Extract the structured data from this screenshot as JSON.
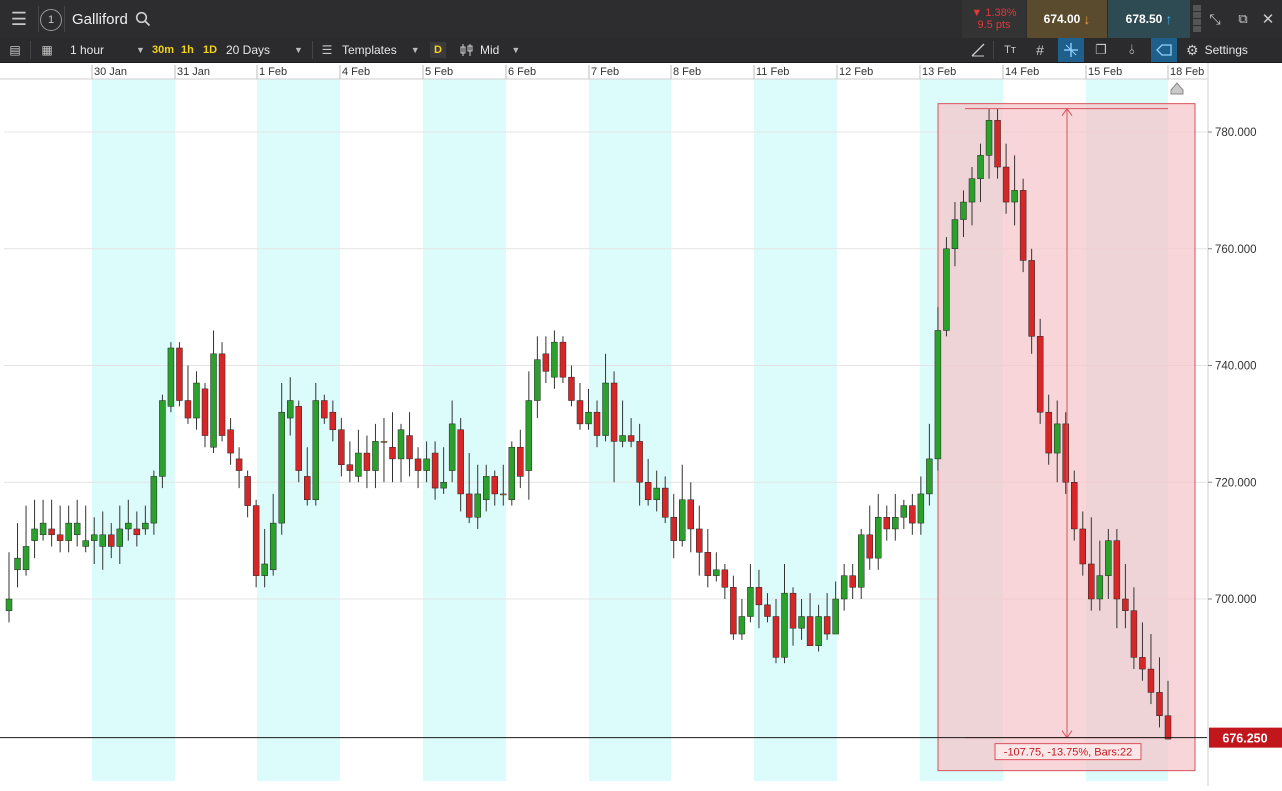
{
  "header": {
    "menu_icon": "hamburger-menu-icon",
    "info_icon": "info-circle-icon",
    "instrument": "Galliford",
    "search_icon": "magnifier-search-icon",
    "change_pct": "▼ 1.38%",
    "change_pts": "9.5 pts",
    "sell_price": "674.00",
    "buy_price": "678.50",
    "colors": {
      "sell_bg": "#5a4a2e",
      "buy_bg": "#2e4a52",
      "change": "#e0383e"
    }
  },
  "toolbar": {
    "interval": "1 hour",
    "quick_intervals": [
      "30m",
      "1h",
      "1D"
    ],
    "range": "20 Days",
    "templates": "Templates",
    "d_badge": "D",
    "price_type": "Mid",
    "settings": "Settings"
  },
  "chart_data": {
    "type": "candlestick",
    "title": "",
    "x_tick_labels": [
      "30 Jan",
      "31 Jan",
      "1 Feb",
      "4 Feb",
      "5 Feb",
      "6 Feb",
      "7 Feb",
      "8 Feb",
      "11 Feb",
      "12 Feb",
      "13 Feb",
      "14 Feb",
      "15 Feb",
      "18 Feb"
    ],
    "y_tick_labels": [
      "780.000",
      "760.000",
      "740.000",
      "720.000",
      "700.000"
    ],
    "y_ticks": [
      780,
      760,
      740,
      720,
      700
    ],
    "ylim": [
      664.4,
      791.5
    ],
    "current_price_label": "676.250",
    "current_price": 676.25,
    "measure_label": "-107.75, -13.75%, Bars:22",
    "measure": {
      "from": 784.0,
      "to": 676.25,
      "change": -107.75,
      "change_pct": -13.75,
      "bars": 22
    },
    "colors": {
      "up": "#2ca02c",
      "down": "#d62728",
      "doji": "#e0a020",
      "shade": "#dcfbfb",
      "measure_fill": "#f6c7cb",
      "measure_line": "#d9535b",
      "price_tag": "#c0161c"
    },
    "candles": [
      [
        698,
        700,
        708,
        696
      ],
      [
        705,
        707,
        713,
        702
      ],
      [
        705,
        709,
        716,
        704
      ],
      [
        710,
        712,
        717,
        707
      ],
      [
        711,
        713,
        717,
        710
      ],
      [
        712,
        711,
        717,
        709
      ],
      [
        711,
        710,
        716,
        708
      ],
      [
        710,
        713,
        716,
        708
      ],
      [
        711,
        713,
        717,
        709
      ],
      [
        709,
        710,
        716,
        708
      ],
      [
        710,
        711,
        714,
        706
      ],
      [
        709,
        711,
        715,
        705
      ],
      [
        711,
        709,
        713,
        707
      ],
      [
        709,
        712,
        716,
        706
      ],
      [
        712,
        713,
        717,
        710
      ],
      [
        712,
        711,
        715,
        709
      ],
      [
        712,
        713,
        716,
        711
      ],
      [
        713,
        721,
        722,
        711
      ],
      [
        721,
        734,
        735,
        719
      ],
      [
        733,
        743,
        744,
        732
      ],
      [
        743,
        734,
        744,
        733
      ],
      [
        734,
        731,
        740,
        730
      ],
      [
        731,
        737,
        739,
        729
      ],
      [
        736,
        728,
        737,
        726
      ],
      [
        726,
        742,
        746,
        725
      ],
      [
        742,
        728,
        744,
        727
      ],
      [
        729,
        725,
        731,
        723
      ],
      [
        724,
        722,
        726,
        719
      ],
      [
        721,
        716,
        722,
        714
      ],
      [
        716,
        704,
        717,
        702
      ],
      [
        704,
        706,
        712,
        702
      ],
      [
        705,
        713,
        718,
        704
      ],
      [
        713,
        732,
        737,
        711
      ],
      [
        731,
        734,
        738,
        728
      ],
      [
        733,
        722,
        734,
        720
      ],
      [
        721,
        717,
        726,
        716
      ],
      [
        717,
        734,
        737,
        716
      ],
      [
        734,
        731,
        735,
        730
      ],
      [
        732,
        729,
        734,
        727
      ],
      [
        729,
        723,
        731,
        721
      ],
      [
        723,
        722,
        727,
        720
      ],
      [
        721,
        725,
        729,
        720
      ],
      [
        725,
        722,
        728,
        719
      ],
      [
        722,
        727,
        730,
        719
      ],
      [
        727,
        727,
        731,
        720
      ],
      [
        726,
        724,
        732,
        720
      ],
      [
        724,
        729,
        730,
        720
      ],
      [
        728,
        724,
        732,
        721
      ],
      [
        724,
        722,
        726,
        719
      ],
      [
        722,
        724,
        727,
        720
      ],
      [
        725,
        719,
        727,
        717
      ],
      [
        719,
        720,
        726,
        718
      ],
      [
        722,
        730,
        734,
        720
      ],
      [
        729,
        718,
        731,
        715
      ],
      [
        718,
        714,
        725,
        713
      ],
      [
        714,
        718,
        723,
        712
      ],
      [
        717,
        721,
        723,
        715
      ],
      [
        721,
        718,
        722,
        716
      ],
      [
        718,
        718,
        723,
        716
      ],
      [
        717,
        726,
        727,
        716
      ],
      [
        726,
        721,
        729,
        719
      ],
      [
        722,
        734,
        739,
        717
      ],
      [
        734,
        741,
        745,
        731
      ],
      [
        742,
        739,
        745,
        737
      ],
      [
        738,
        744,
        746,
        736
      ],
      [
        744,
        738,
        745,
        737
      ],
      [
        738,
        734,
        740,
        733
      ],
      [
        734,
        730,
        737,
        729
      ],
      [
        730,
        732,
        736,
        729
      ],
      [
        732,
        728,
        734,
        726
      ],
      [
        728,
        737,
        742,
        727
      ],
      [
        737,
        727,
        739,
        720
      ],
      [
        727,
        728,
        734,
        726
      ],
      [
        728,
        727,
        731,
        726
      ],
      [
        727,
        720,
        730,
        716
      ],
      [
        720,
        717,
        724,
        716
      ],
      [
        717,
        719,
        722,
        715
      ],
      [
        719,
        714,
        721,
        713
      ],
      [
        714,
        710,
        718,
        707
      ],
      [
        710,
        717,
        723,
        709
      ],
      [
        717,
        712,
        720,
        708
      ],
      [
        712,
        708,
        716,
        704
      ],
      [
        708,
        704,
        712,
        702
      ],
      [
        704,
        705,
        708,
        703
      ],
      [
        705,
        702,
        706,
        700
      ],
      [
        702,
        694,
        704,
        693
      ],
      [
        694,
        697,
        700,
        693
      ],
      [
        697,
        702,
        706,
        696
      ],
      [
        702,
        699,
        705,
        695
      ],
      [
        699,
        697,
        701,
        696
      ],
      [
        697,
        690,
        700,
        689
      ],
      [
        690,
        701,
        706,
        689
      ],
      [
        701,
        695,
        702,
        692
      ],
      [
        695,
        697,
        700,
        693
      ],
      [
        697,
        692,
        701,
        692
      ],
      [
        692,
        697,
        699,
        691
      ],
      [
        697,
        694,
        701,
        693
      ],
      [
        694,
        700,
        703,
        694
      ],
      [
        700,
        704,
        706,
        698
      ],
      [
        704,
        702,
        706,
        700
      ],
      [
        702,
        711,
        712,
        700
      ],
      [
        711,
        707,
        716,
        705
      ],
      [
        707,
        714,
        718,
        705
      ],
      [
        714,
        712,
        716,
        710
      ],
      [
        712,
        714,
        718,
        710
      ],
      [
        714,
        716,
        717,
        712
      ],
      [
        716,
        713,
        718,
        711
      ],
      [
        713,
        718,
        721,
        711
      ],
      [
        718,
        724,
        730,
        716
      ],
      [
        724,
        746,
        750,
        722
      ],
      [
        746,
        760,
        762,
        745
      ],
      [
        760,
        765,
        768,
        757
      ],
      [
        765,
        768,
        770,
        762
      ],
      [
        768,
        772,
        774,
        764
      ],
      [
        772,
        776,
        778,
        768
      ],
      [
        776,
        782,
        784,
        772
      ],
      [
        782,
        774,
        784,
        772
      ],
      [
        774,
        768,
        778,
        766
      ],
      [
        768,
        770,
        776,
        764
      ],
      [
        770,
        758,
        772,
        756
      ],
      [
        758,
        745,
        760,
        742
      ],
      [
        745,
        732,
        748,
        730
      ],
      [
        732,
        725,
        735,
        723
      ],
      [
        725,
        730,
        734,
        720
      ],
      [
        730,
        720,
        732,
        718
      ],
      [
        720,
        712,
        722,
        710
      ],
      [
        712,
        706,
        715,
        704
      ],
      [
        706,
        700,
        714,
        698
      ],
      [
        700,
        704,
        710,
        698
      ],
      [
        704,
        710,
        712,
        700
      ],
      [
        710,
        700,
        712,
        695
      ],
      [
        700,
        698,
        706,
        695
      ],
      [
        698,
        690,
        702,
        688
      ],
      [
        690,
        688,
        696,
        686
      ],
      [
        688,
        684,
        694,
        682
      ],
      [
        684,
        680,
        690,
        678
      ],
      [
        680,
        676,
        686,
        676
      ]
    ]
  }
}
